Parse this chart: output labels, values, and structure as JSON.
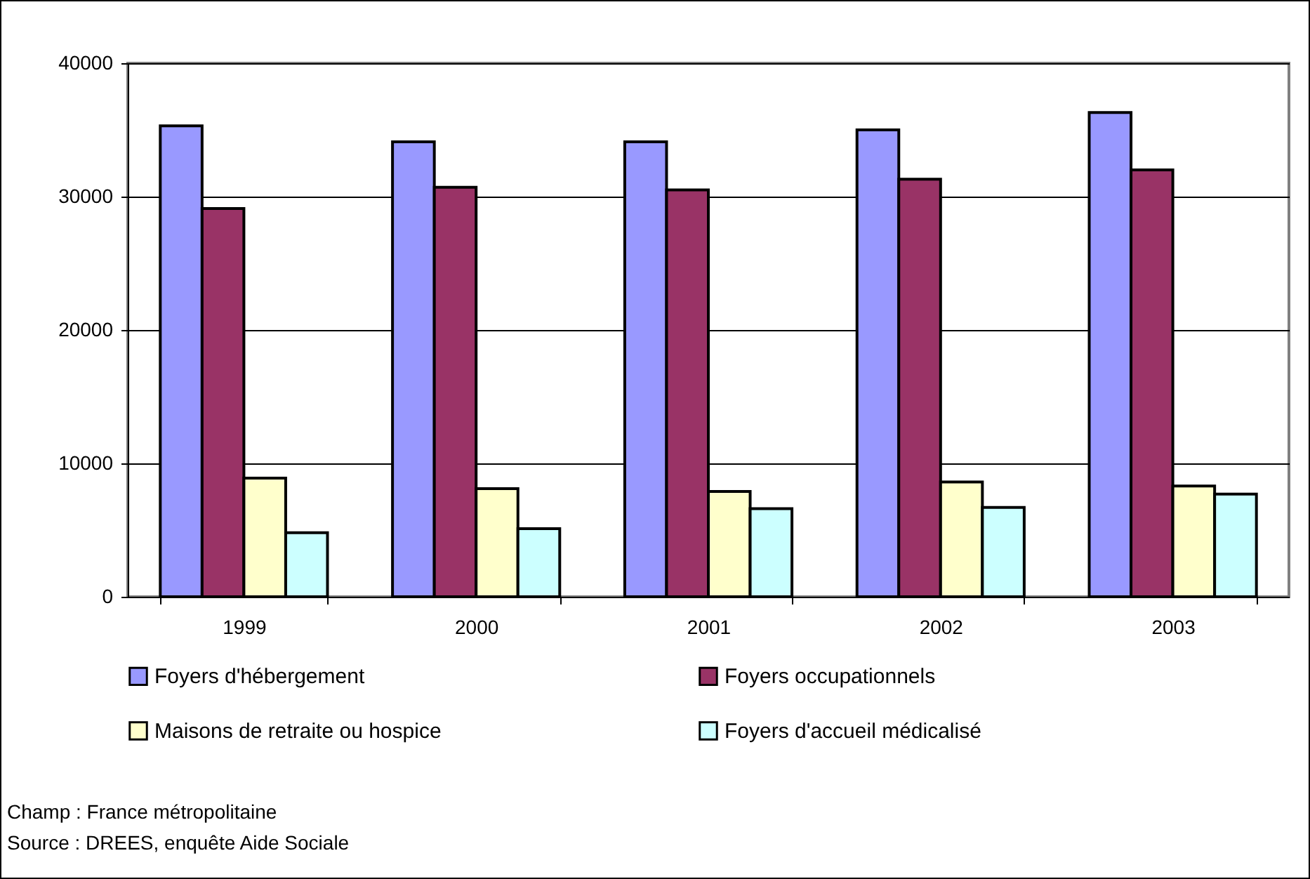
{
  "chart_data": {
    "type": "bar",
    "categories": [
      "1999",
      "2000",
      "2001",
      "2002",
      "2003"
    ],
    "series": [
      {
        "name": "Foyers d'hébergement",
        "color": "#9999ff",
        "values": [
          35300,
          34100,
          34100,
          35000,
          36300
        ]
      },
      {
        "name": "Foyers occupationnels",
        "color": "#993366",
        "values": [
          29100,
          30700,
          30500,
          31300,
          32000
        ]
      },
      {
        "name": "Maisons de retraite ou hospice",
        "color": "#ffffcc",
        "values": [
          8900,
          8100,
          7900,
          8600,
          8300
        ]
      },
      {
        "name": "Foyers d'accueil médicalisé",
        "color": "#ccffff",
        "values": [
          4800,
          5100,
          6600,
          6700,
          7700
        ]
      }
    ],
    "ylim": [
      0,
      40000
    ],
    "yticks": [
      0,
      10000,
      20000,
      30000,
      40000
    ],
    "grid": "y",
    "legend": "bottom",
    "annotations": [
      "Champ : France métropolitaine",
      "Source : DREES, enquête Aide Sociale"
    ]
  }
}
